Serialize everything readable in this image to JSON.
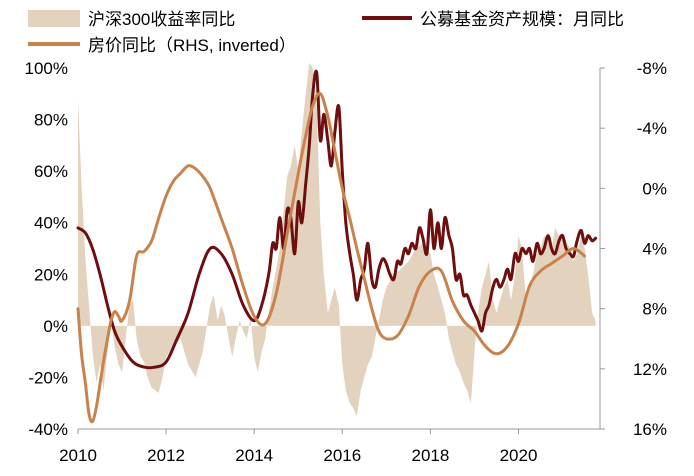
{
  "chart_data": {
    "type": "line",
    "title": "",
    "legend": {
      "placement": "top",
      "items": [
        {
          "label": "沪深300收益率同比",
          "kind": "area",
          "color": "#E3D2BE"
        },
        {
          "label": "公募基金资产规模：月同比",
          "kind": "line",
          "color": "#6E0F0F"
        },
        {
          "label": "房价同比（RHS, inverted）",
          "kind": "line",
          "color": "#C8834D"
        }
      ]
    },
    "x_axis": {
      "range": [
        2010.0,
        2021.85
      ],
      "ticks": [
        2010,
        2012,
        2014,
        2016,
        2018,
        2020
      ],
      "tick_labels": [
        "2010",
        "2012",
        "2014",
        "2016",
        "2018",
        "2020"
      ]
    },
    "y_left": {
      "range": [
        -40,
        100
      ],
      "ticks": [
        -40,
        -20,
        0,
        20,
        40,
        60,
        80,
        100
      ],
      "tick_labels": [
        "-40%",
        "-20%",
        "0%",
        "20%",
        "40%",
        "60%",
        "80%",
        "100%"
      ]
    },
    "y_right": {
      "range": [
        16,
        -8
      ],
      "inverted": true,
      "ticks": [
        -8,
        -4,
        0,
        4,
        8,
        12,
        16
      ],
      "tick_labels": [
        "-8%",
        "-4%",
        "0%",
        "4%",
        "8%",
        "12%",
        "16%"
      ]
    },
    "series": [
      {
        "name": "沪深300收益率同比",
        "axis": "left",
        "type": "area",
        "color": "#E3D2BE",
        "x": [
          2010.0,
          2010.08,
          2010.17,
          2010.25,
          2010.33,
          2010.42,
          2010.5,
          2010.58,
          2010.67,
          2010.75,
          2010.83,
          2010.92,
          2011.0,
          2011.08,
          2011.17,
          2011.25,
          2011.33,
          2011.42,
          2011.5,
          2011.58,
          2011.67,
          2011.75,
          2011.83,
          2011.92,
          2012.0,
          2012.17,
          2012.33,
          2012.5,
          2012.67,
          2012.83,
          2013.0,
          2013.08,
          2013.17,
          2013.25,
          2013.33,
          2013.42,
          2013.5,
          2013.58,
          2013.67,
          2013.75,
          2013.83,
          2013.92,
          2014.0,
          2014.08,
          2014.17,
          2014.25,
          2014.33,
          2014.42,
          2014.5,
          2014.58,
          2014.67,
          2014.75,
          2014.83,
          2014.92,
          2015.0,
          2015.08,
          2015.17,
          2015.25,
          2015.33,
          2015.42,
          2015.5,
          2015.58,
          2015.67,
          2015.75,
          2015.83,
          2015.92,
          2016.0,
          2016.08,
          2016.17,
          2016.25,
          2016.33,
          2016.42,
          2016.5,
          2016.58,
          2016.67,
          2016.75,
          2016.83,
          2016.92,
          2017.0,
          2017.17,
          2017.33,
          2017.5,
          2017.67,
          2017.83,
          2018.0,
          2018.08,
          2018.17,
          2018.25,
          2018.33,
          2018.42,
          2018.5,
          2018.58,
          2018.67,
          2018.75,
          2018.83,
          2018.92,
          2019.0,
          2019.08,
          2019.17,
          2019.25,
          2019.33,
          2019.42,
          2019.5,
          2019.58,
          2019.67,
          2019.75,
          2019.83,
          2019.92,
          2020.0,
          2020.08,
          2020.17,
          2020.25,
          2020.33,
          2020.42,
          2020.5,
          2020.58,
          2020.67,
          2020.75,
          2020.83,
          2020.92,
          2021.0,
          2021.08,
          2021.17,
          2021.25,
          2021.33,
          2021.42,
          2021.5,
          2021.58,
          2021.67,
          2021.75
        ],
        "values": [
          88,
          55,
          25,
          8,
          -10,
          -22,
          -15,
          -25,
          -10,
          2,
          -8,
          -15,
          -18,
          -5,
          8,
          10,
          -5,
          -12,
          -14,
          -20,
          -24,
          -25,
          -26,
          -20,
          -12,
          -8,
          -5,
          -15,
          -20,
          -10,
          8,
          12,
          2,
          8,
          4,
          -5,
          -12,
          -5,
          2,
          -2,
          -5,
          3,
          -12,
          -18,
          -10,
          -5,
          5,
          15,
          22,
          30,
          45,
          58,
          62,
          70,
          60,
          75,
          90,
          102,
          100,
          85,
          40,
          20,
          5,
          10,
          15,
          8,
          -15,
          -25,
          -30,
          -32,
          -35,
          -25,
          -20,
          -15,
          -12,
          -5,
          2,
          10,
          15,
          20,
          22,
          25,
          30,
          32,
          28,
          20,
          15,
          10,
          5,
          -5,
          -10,
          -15,
          -18,
          -22,
          -25,
          -30,
          -10,
          5,
          15,
          20,
          25,
          10,
          5,
          10,
          15,
          18,
          10,
          20,
          35,
          30,
          10,
          15,
          20,
          28,
          30,
          35,
          33,
          30,
          38,
          35,
          35,
          33,
          30,
          25,
          28,
          35,
          30,
          20,
          5,
          2
        ]
      },
      {
        "name": "公募基金资产规模：月同比",
        "axis": "left",
        "type": "line",
        "color": "#6E0F0F",
        "x": [
          2010.0,
          2010.17,
          2010.33,
          2010.5,
          2010.67,
          2010.83,
          2011.0,
          2011.25,
          2011.5,
          2011.75,
          2012.0,
          2012.25,
          2012.5,
          2012.75,
          2013.0,
          2013.25,
          2013.5,
          2013.75,
          2014.0,
          2014.17,
          2014.33,
          2014.42,
          2014.5,
          2014.58,
          2014.67,
          2014.75,
          2014.83,
          2014.92,
          2015.0,
          2015.08,
          2015.17,
          2015.25,
          2015.33,
          2015.42,
          2015.5,
          2015.58,
          2015.67,
          2015.75,
          2015.83,
          2015.92,
          2016.0,
          2016.08,
          2016.17,
          2016.25,
          2016.33,
          2016.42,
          2016.5,
          2016.58,
          2016.67,
          2016.75,
          2016.83,
          2016.92,
          2017.0,
          2017.08,
          2017.17,
          2017.25,
          2017.33,
          2017.42,
          2017.5,
          2017.58,
          2017.67,
          2017.75,
          2017.83,
          2017.92,
          2018.0,
          2018.08,
          2018.17,
          2018.25,
          2018.33,
          2018.42,
          2018.5,
          2018.58,
          2018.67,
          2018.75,
          2018.83,
          2018.92,
          2019.0,
          2019.08,
          2019.17,
          2019.25,
          2019.33,
          2019.42,
          2019.5,
          2019.58,
          2019.67,
          2019.75,
          2019.83,
          2019.92,
          2020.0,
          2020.08,
          2020.17,
          2020.25,
          2020.33,
          2020.42,
          2020.5,
          2020.58,
          2020.67,
          2020.75,
          2020.83,
          2020.92,
          2021.0,
          2021.08,
          2021.17,
          2021.25,
          2021.33,
          2021.42,
          2021.5,
          2021.58,
          2021.67,
          2021.75
        ],
        "values": [
          38,
          36,
          30,
          20,
          8,
          -2,
          -8,
          -14,
          -16,
          -16,
          -14,
          -5,
          5,
          20,
          30,
          28,
          20,
          8,
          2,
          8,
          20,
          32,
          30,
          42,
          30,
          45,
          42,
          28,
          48,
          40,
          55,
          70,
          90,
          98,
          72,
          82,
          72,
          62,
          75,
          85,
          60,
          40,
          28,
          20,
          10,
          18,
          22,
          32,
          18,
          15,
          22,
          26,
          24,
          20,
          18,
          25,
          24,
          30,
          28,
          32,
          30,
          38,
          34,
          28,
          45,
          30,
          40,
          30,
          42,
          35,
          30,
          18,
          20,
          12,
          12,
          8,
          5,
          2,
          -2,
          5,
          8,
          15,
          18,
          15,
          18,
          22,
          18,
          28,
          25,
          30,
          28,
          30,
          25,
          32,
          28,
          30,
          35,
          30,
          28,
          33,
          35,
          30,
          28,
          27,
          33,
          37,
          32,
          35,
          33,
          34
        ]
      },
      {
        "name": "房价同比（RHS, inverted）",
        "axis": "right",
        "type": "line",
        "color": "#C8834D",
        "x": [
          2010.0,
          2010.08,
          2010.17,
          2010.25,
          2010.33,
          2010.42,
          2010.5,
          2010.58,
          2010.67,
          2010.75,
          2010.83,
          2010.92,
          2011.0,
          2011.17,
          2011.33,
          2011.5,
          2011.67,
          2011.83,
          2012.0,
          2012.17,
          2012.33,
          2012.5,
          2012.67,
          2012.83,
          2013.0,
          2013.25,
          2013.5,
          2013.75,
          2014.0,
          2014.25,
          2014.5,
          2014.75,
          2015.0,
          2015.17,
          2015.33,
          2015.5,
          2015.67,
          2015.83,
          2016.0,
          2016.17,
          2016.33,
          2016.5,
          2016.67,
          2016.83,
          2017.0,
          2017.25,
          2017.5,
          2017.75,
          2018.0,
          2018.25,
          2018.5,
          2018.75,
          2019.0,
          2019.25,
          2019.5,
          2019.75,
          2020.0,
          2020.25,
          2020.5,
          2020.75,
          2021.0,
          2021.25,
          2021.5
        ],
        "values": [
          8,
          11,
          13,
          15,
          15.5,
          14.5,
          13,
          11.5,
          10,
          8.8,
          8.2,
          8.5,
          8.8,
          7.5,
          4.5,
          4.2,
          3.5,
          2,
          0.5,
          -0.5,
          -1,
          -1.5,
          -1.3,
          -0.8,
          0,
          2,
          4,
          6.5,
          8.5,
          9,
          7,
          3,
          -1,
          -3.5,
          -5.5,
          -6.3,
          -4.8,
          -2.5,
          0,
          2,
          4,
          6,
          8,
          9.5,
          10,
          9.8,
          8.5,
          6.5,
          5.5,
          5.5,
          7.5,
          8.8,
          9.5,
          10.5,
          11,
          10.5,
          9,
          6.5,
          5.5,
          5,
          4.5,
          4,
          4.5
        ]
      }
    ]
  }
}
